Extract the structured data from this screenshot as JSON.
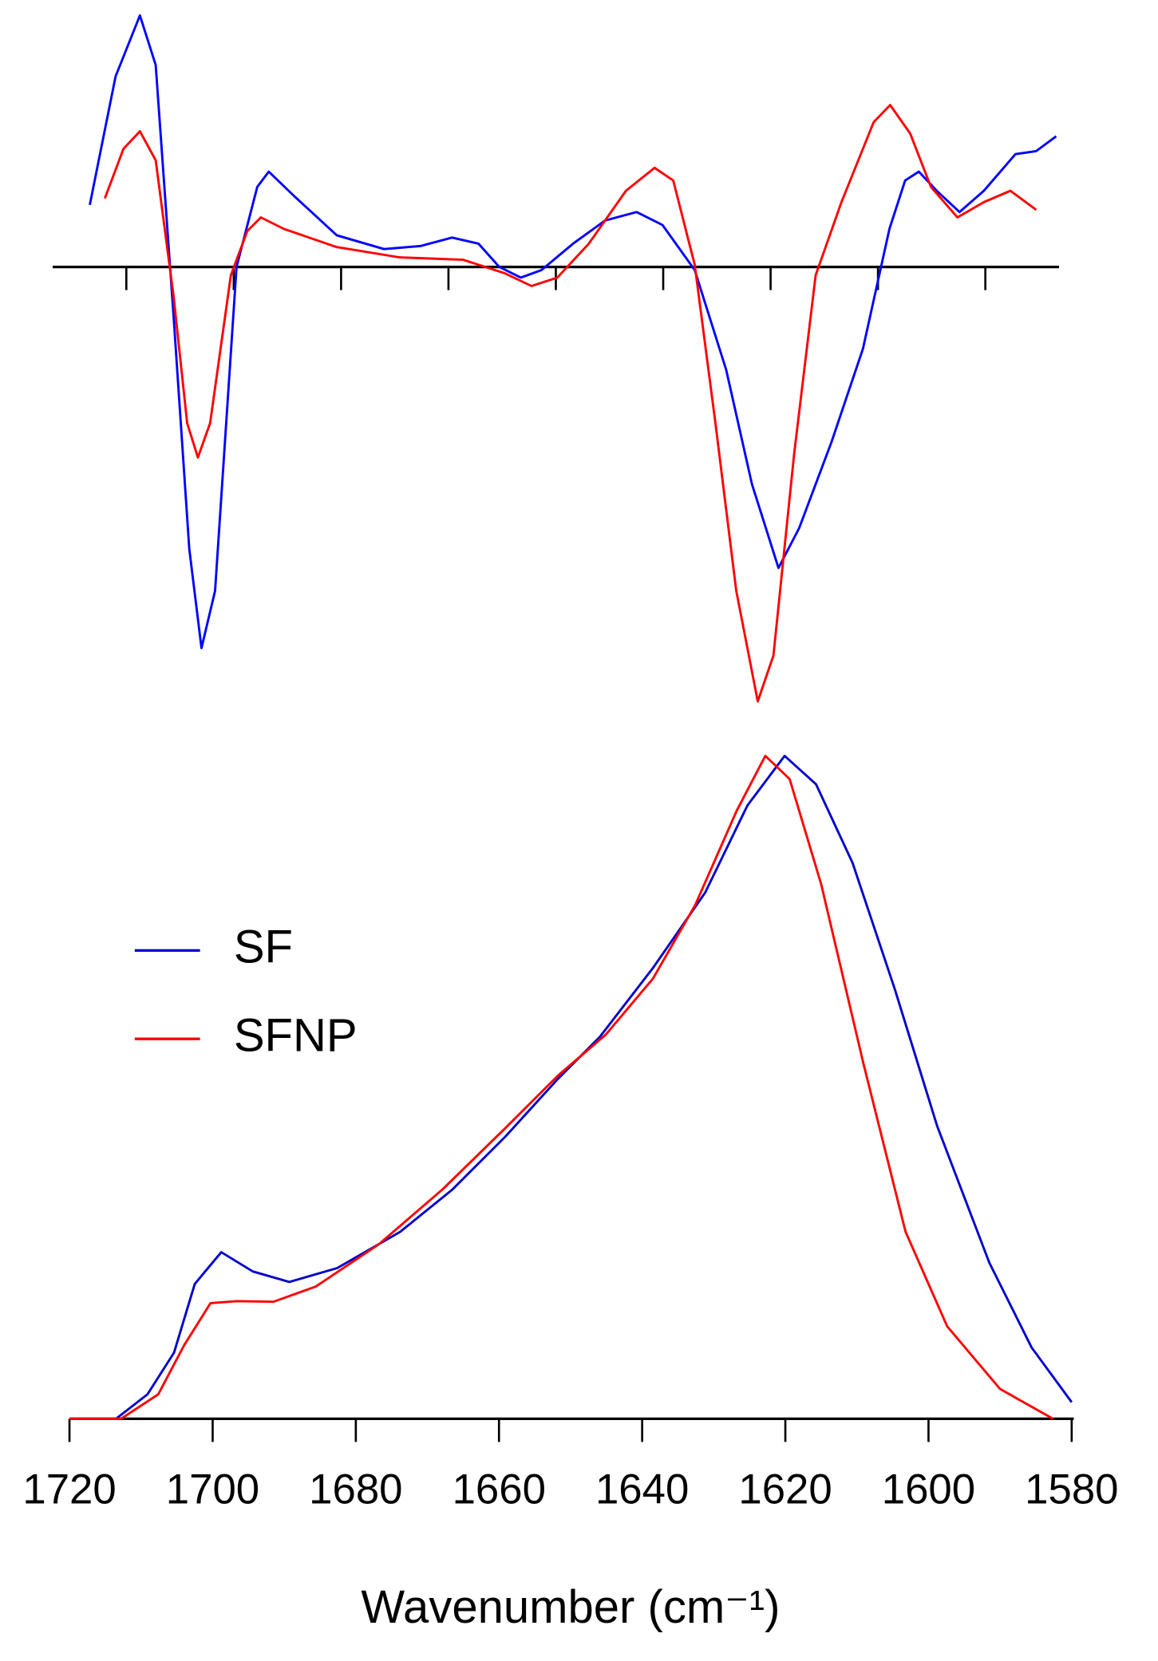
{
  "chart_data": [
    {
      "type": "line",
      "xlim": [
        1722,
        1582
      ],
      "ylim": [
        -1.2,
        0.7
      ],
      "xticks": [
        1712,
        1697,
        1682,
        1667,
        1652,
        1637,
        1622,
        1607,
        1592
      ],
      "tick_labels": false,
      "x_axis_at_zero": true,
      "series": [
        {
          "color": "#0000ff",
          "x": [
            1717.1,
            1713.5,
            1710.1,
            1707.9,
            1705.4,
            1703.2,
            1701.5,
            1699.6,
            1696.6,
            1693.7,
            1692.1,
            1688.5,
            1682.6,
            1676.0,
            1670.9,
            1666.5,
            1662.8,
            1659.9,
            1656.9,
            1654.0,
            1649.6,
            1645.1,
            1640.7,
            1637.1,
            1632.6,
            1628.2,
            1624.6,
            1620.9,
            1618.0,
            1613.5,
            1609.1,
            1605.4,
            1603.2,
            1601.3,
            1598.8,
            1595.6,
            1592.2,
            1587.8,
            1584.9,
            1582.1
          ],
          "values": [
            0.163,
            0.5,
            0.66,
            0.53,
            -0.13,
            -0.74,
            -1.0,
            -0.85,
            0.0,
            0.21,
            0.25,
            0.185,
            0.083,
            0.047,
            0.055,
            0.077,
            0.061,
            0.0,
            -0.028,
            -0.008,
            0.061,
            0.122,
            0.144,
            0.11,
            -0.008,
            -0.27,
            -0.57,
            -0.79,
            -0.685,
            -0.46,
            -0.215,
            0.1,
            0.227,
            0.25,
            0.2,
            0.144,
            0.2,
            0.296,
            0.304,
            0.343
          ]
        },
        {
          "color": "#ff0000",
          "x": [
            1715.0,
            1712.4,
            1710.1,
            1707.9,
            1705.4,
            1703.5,
            1702.0,
            1700.3,
            1697.4,
            1695.1,
            1693.2,
            1690.0,
            1682.6,
            1673.8,
            1665.0,
            1659.1,
            1655.4,
            1651.8,
            1647.4,
            1642.2,
            1638.2,
            1635.6,
            1632.6,
            1629.7,
            1626.8,
            1623.8,
            1621.6,
            1618.7,
            1615.7,
            1612.1,
            1607.6,
            1605.3,
            1602.5,
            1599.6,
            1595.9,
            1592.2,
            1588.5,
            1584.9
          ],
          "values": [
            0.18,
            0.31,
            0.356,
            0.28,
            -0.077,
            -0.41,
            -0.5,
            -0.41,
            -0.022,
            0.094,
            0.13,
            0.1,
            0.052,
            0.025,
            0.019,
            -0.017,
            -0.05,
            -0.028,
            0.061,
            0.2,
            0.26,
            0.227,
            0.006,
            -0.41,
            -0.85,
            -1.14,
            -1.02,
            -0.49,
            -0.022,
            0.17,
            0.38,
            0.425,
            0.35,
            0.21,
            0.13,
            0.17,
            0.2,
            0.15
          ]
        }
      ]
    },
    {
      "type": "line",
      "xlim": [
        1720,
        1580
      ],
      "ylim": [
        0,
        1
      ],
      "xticks": [
        1720,
        1700,
        1680,
        1660,
        1640,
        1620,
        1600,
        1580
      ],
      "tick_labels": true,
      "x_label": "Wavenumber (cm⁻¹)",
      "legend": "left",
      "series": [
        {
          "name": "SF",
          "color": "#0000cc",
          "x": [
            1720,
            1713.5,
            1709.1,
            1705.4,
            1702.5,
            1698.8,
            1694.4,
            1689.3,
            1682.6,
            1673.8,
            1666.5,
            1659.1,
            1651.8,
            1645.9,
            1638.5,
            1631.2,
            1625.3,
            1620.1,
            1615.7,
            1610.6,
            1604.7,
            1598.8,
            1591.5,
            1585.6,
            1580
          ],
          "values": [
            0,
            0,
            0.037,
            0.1,
            0.204,
            0.252,
            0.223,
            0.207,
            0.228,
            0.283,
            0.347,
            0.427,
            0.514,
            0.578,
            0.682,
            0.796,
            0.928,
            1.003,
            0.96,
            0.841,
            0.65,
            0.443,
            0.236,
            0.108,
            0.025
          ]
        },
        {
          "name": "SFNP",
          "color": "#ff0000",
          "x": [
            1720,
            1712.8,
            1707.6,
            1704.0,
            1700.3,
            1696.6,
            1691.5,
            1685.6,
            1676.8,
            1667.9,
            1659.1,
            1651.8,
            1645.1,
            1638.5,
            1632.6,
            1626.8,
            1622.8,
            1619.4,
            1615.0,
            1609.1,
            1603.2,
            1597.4,
            1590.0,
            1582.6
          ],
          "values": [
            0,
            0,
            0.037,
            0.111,
            0.175,
            0.178,
            0.177,
            0.2,
            0.264,
            0.347,
            0.44,
            0.519,
            0.581,
            0.666,
            0.777,
            0.92,
            1.003,
            0.968,
            0.809,
            0.538,
            0.283,
            0.14,
            0.045,
            0
          ]
        }
      ]
    }
  ]
}
